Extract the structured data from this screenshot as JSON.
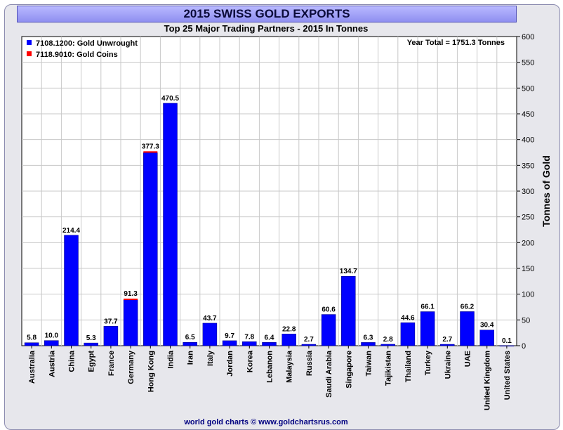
{
  "header": {
    "title": "2015 SWISS GOLD EXPORTS",
    "subtitle": "Top 25 Major Trading Partners - 2015 In Tonnes",
    "year_total": "Year Total = 1751.3 Tonnes",
    "footer": "world gold charts © www.goldchartsrus.com"
  },
  "colors": {
    "unwrought": "#0000ff",
    "coins": "#ff0000",
    "plot_bg": "#ffffff",
    "grid": "#c8c8c8"
  },
  "chart_data": {
    "type": "bar",
    "ylabel": "Tonnes of Gold",
    "ylim": [
      0,
      600
    ],
    "yticks": [
      0,
      50,
      100,
      150,
      200,
      250,
      300,
      350,
      400,
      450,
      500,
      550,
      600
    ],
    "grid": true,
    "legend_position": "top-left",
    "categories": [
      "Australia",
      "Austria",
      "China",
      "Egypt",
      "France",
      "Germany",
      "Hong Kong",
      "India",
      "Iran",
      "Italy",
      "Jordan",
      "Korea",
      "Lebanon",
      "Malaysia",
      "Russia",
      "Saudi Arabia",
      "Singapore",
      "Taiwan",
      "Tajikistan",
      "Thailand",
      "Turkey",
      "Ukraine",
      "UAE",
      "United Kingdom",
      "United States"
    ],
    "totals": [
      "5.8",
      "10.0",
      "214.4",
      "5.3",
      "37.7",
      "91.3",
      "377.3",
      "470.5",
      "6.5",
      "43.7",
      "9.7",
      "7.8",
      "6.4",
      "22.8",
      "2.7",
      "60.6",
      "134.7",
      "6.3",
      "2.8",
      "44.6",
      "66.1",
      "2.7",
      "66.2",
      "30.4",
      "0.1"
    ],
    "series": [
      {
        "name": "7108.1200: Gold Unwrought",
        "values": [
          5.8,
          10.0,
          214.4,
          5.3,
          37.7,
          88.8,
          374.5,
          470.5,
          6.5,
          43.7,
          9.7,
          7.8,
          6.4,
          22.8,
          2.7,
          60.6,
          134.7,
          6.3,
          2.8,
          44.6,
          66.1,
          2.7,
          66.2,
          30.4,
          0.1
        ]
      },
      {
        "name": "7118.9010: Gold Coins",
        "values": [
          0,
          0,
          0,
          0,
          0,
          2.5,
          2.8,
          0,
          0,
          0,
          0,
          0,
          0,
          0,
          0,
          0,
          0,
          0,
          0,
          0,
          0,
          0,
          0,
          0,
          0
        ]
      }
    ]
  }
}
